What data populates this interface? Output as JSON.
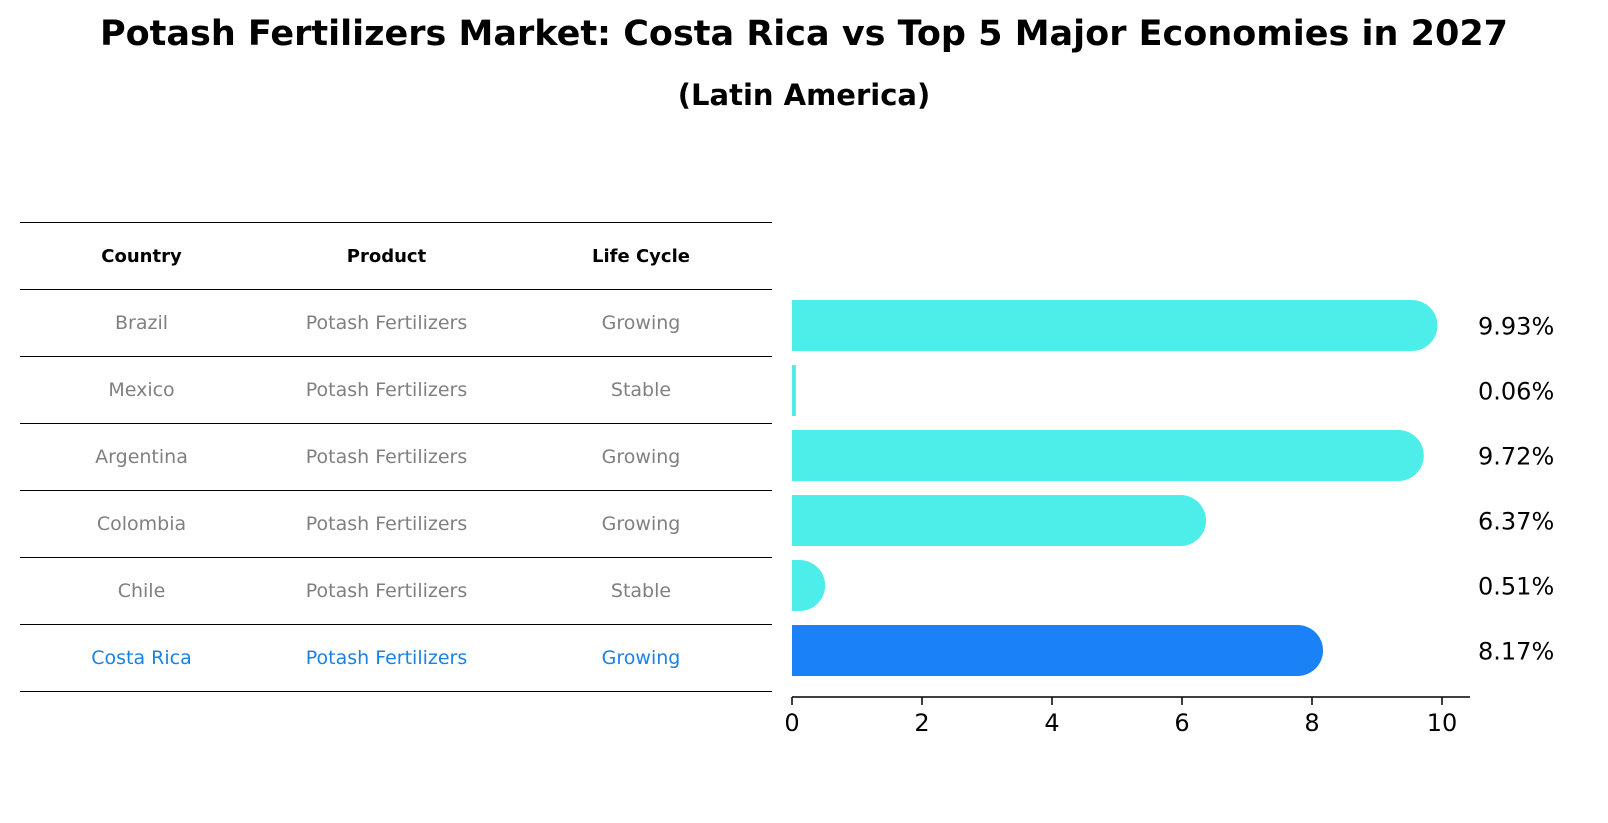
{
  "title": "Potash Fertilizers Market: Costa Rica vs Top 5 Major Economies in 2027",
  "subtitle": "(Latin America)",
  "table": {
    "headers": [
      "Country",
      "Product",
      "Life Cycle"
    ],
    "rows": [
      {
        "country": "Brazil",
        "product": "Potash Fertilizers",
        "life_cycle": "Growing"
      },
      {
        "country": "Mexico",
        "product": "Potash Fertilizers",
        "life_cycle": "Stable"
      },
      {
        "country": "Argentina",
        "product": "Potash Fertilizers",
        "life_cycle": "Growing"
      },
      {
        "country": "Colombia",
        "product": "Potash Fertilizers",
        "life_cycle": "Growing"
      },
      {
        "country": "Chile",
        "product": "Potash Fertilizers",
        "life_cycle": "Stable"
      },
      {
        "country": "Costa Rica",
        "product": "Potash Fertilizers",
        "life_cycle": "Growing"
      }
    ]
  },
  "colors": {
    "default_bar": "#4deeea",
    "highlight_bar": "#1a82f6",
    "highlight_text": "#1a82e6",
    "muted_text": "#808080"
  },
  "chart_data": {
    "type": "bar",
    "orientation": "horizontal",
    "categories": [
      "Brazil",
      "Mexico",
      "Argentina",
      "Colombia",
      "Chile",
      "Costa Rica"
    ],
    "values": [
      9.93,
      0.06,
      9.72,
      6.37,
      0.51,
      8.17
    ],
    "value_labels": [
      "9.93%",
      "0.06%",
      "9.72%",
      "6.37%",
      "0.51%",
      "8.17%"
    ],
    "highlight": "Costa Rica",
    "xlim": [
      0,
      10.4
    ],
    "xticks": [
      0,
      2,
      4,
      6,
      8,
      10
    ],
    "title": "Potash Fertilizers Market: Costa Rica vs Top 5 Major Economies in 2027",
    "xlabel": "",
    "ylabel": "",
    "grid": false
  }
}
